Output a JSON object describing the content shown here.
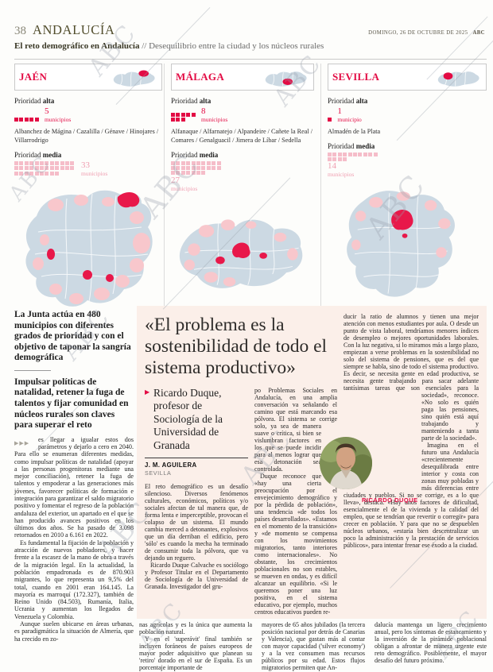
{
  "colors": {
    "accent_red": "#e30b44",
    "pink": "#f5bdc9",
    "map_base": "#ccd9e3",
    "map_pink": "#f8c7cc",
    "map_red": "#e8184a",
    "box_bg": "#fbefe9"
  },
  "watermark": "ABC",
  "header": {
    "page_number": "38",
    "section": "ANDALUCÍA",
    "date": "DOMINGO, 26 DE OCTUBRE DE 2025",
    "brand": "ABC",
    "kicker_bold": "El reto demográfico en Andalucía",
    "kicker_rest": "// Desequilibrio entre la ciudad y los núcleos rurales"
  },
  "panels": [
    {
      "title": "JAÉN",
      "alta": {
        "label": "Prioridad ",
        "level": "alta",
        "count": "5",
        "n": 5,
        "unit": "municipios"
      },
      "municipalities": "Albanchez de Mágina / Cazalilla / Génave / Hinojares / Villarrodrigo",
      "media": {
        "label": "Prioridad ",
        "level": "media",
        "count": "33",
        "n": 33,
        "unit": "municipios"
      }
    },
    {
      "title": "MÁLAGA",
      "alta": {
        "label": "Prioridad ",
        "level": "alta",
        "count": "8",
        "n": 8,
        "unit": "municipios"
      },
      "municipalities": "Alfanaque / Alfarnatejo / Alpandeire / Cañete la Real / Comares / Genalguacil / Jimera de Líbar / Sedella",
      "media": {
        "label": "Prioridad ",
        "level": "media",
        "count": "27",
        "n": 27,
        "unit": "municipios"
      }
    },
    {
      "title": "SEVILLA",
      "alta": {
        "label": "Prioridad ",
        "level": "alta",
        "count": "1",
        "n": 1,
        "unit": "municipio"
      },
      "municipalities": "Almadén de la Plata",
      "media": {
        "label": "Prioridad ",
        "level": "media",
        "count": "14",
        "n": 14,
        "unit": "municipios"
      }
    }
  ],
  "left_article": {
    "lede1": "La Junta actúa en 480 municipios con diferentes grados de prioridad y con el objetivo de taponar la sangría demográfica",
    "lede2": "Impulsar políticas de natalidad, retener la fuga de talentos y fijar comunidad en núcleos rurales son claves para superar el reto",
    "cont_marker": "▶▶▶",
    "p1": "es llegar a igualar estos dos parámetros y dejarlo a cero en 2040. Para ello se enumeran diferentes medidas, como impulsar políticas de natalidad (apoyar a las personas progenitoras mediante una mejor conciliación), retener la fuga de talentos y empoderar a las generaciones más jóvenes, favorecer políticas de formación e integración para garantizar el saldo migratorio positivo y fomentar el regreso de la población andaluza del exterior, un apartado en el que se han producido avances positivos en los últimos dos años. Se ha pasado de 3.098 retornados en 2010 a 6.161 en 2022.",
    "p2": "Es fundamental la fijación de la población y atracción de nuevos pobladores, y hacer frente a la escasez de la mano de obra a través de la migración legal. En la actualidad, la población empadronada es de 870.903 migrantes, lo que representa un 9,5% del total, cuando en 2001 eran 164.145. La mayoría es marroquí (172.327), también de Reino Unido (84.503), Rumanía, Italia, Ucrania y aumentan los llegados de Venezuela y Colombia.",
    "p3": "Aunque suelen ubicarse en áreas urbanas, es paradigmática la situación de Almería, que ha crecido en zo-"
  },
  "interview": {
    "headline": "«El problema es la sostenibilidad de todo el sistema productivo»",
    "deck_arrow": "▶",
    "deck": "Ricardo Duque, profesor de Sociología de la Universidad de Granada",
    "byline": "J. M. AGUILERA",
    "byline_place": "SEVILLA",
    "col1a": "El reto demográfico es un desafío silencioso. Diversos fenómenos culturales, económicos, políticos y/o sociales afectan de tal manera que, de forma lenta e imperceptible, provocan el colapso de un sistema. El mundo cambia merced a detonantes, explosivos que un día derriban el edificio, pero 'sólo' es cuando la mecha ha terminado de consumir toda la pólvora, que va dejando un reguero.",
    "col1b": "Ricardo Duque Calvache es sociólogo y Profesor Titular en el Departamento de Sociología de la Universidad de Granada. Investigador del gru-",
    "col2a": "po Problemas Sociales en Andalucía, en una amplia conversación va señalando el camino que está marcando esa pólvora. El sistema se corrige solo,",
    "col2b": "ya sea de manera suave o crítica, si bien se vislumbran factores en los que se puede incidir para al menos lograr que esa detonación sea controlada.",
    "col2c": "Duque reconoce que «hay una cierta preocupación por el envejecimiento demográfico y por la pérdida de población», una tendencia «de todos los países desarrollados». «Estamos en el momento de la transición» y «de momento se compensa con los movimientos migratorios, tanto interiores como internacionales». No obstante, los crecimientos poblacionales no son estables, se mueven en ondas, y es difícil alcanzar un equilibrio. «Si le queremos poner una luz positiva, en el sistema educativo, por ejemplo, muchos centros educativos pueden re-",
    "col3a": "ducir la ratio de alumnos y tienen una mejor atención con menos estudiantes por aula. O desde un punto de vista laboral, tendríamos menores índices de desempleo o mejores oportunidades laborales. Con la luz negativa, si lo miramos más a largo plazo, empiezan a verse problemas en la sostenibilidad no solo del sistema de pensiones, que es del que siempre se habla, sino de todo el sistema productivo. Es decir, se necesita gente en edad productiva, se necesita gente trabajando para sacar adelante tantísimas tareas que son esenciales para la sociedad», reconoce.",
    "col3b": "«No solo es quién paga las pensiones, sino quién está aquí trabajando y manteniendo a tanta parte de la sociedad».",
    "col3c": "Imagina en el futuro una Andalucía «crecientemente desequilibrada entre interior y costa con zonas muy pobladas y más diferencias entre ciudades y pueblos. Si no se corrige, es a lo que lleva», destaca. «Hay unos factores de dificultad, esencialmente el de la vivienda y la calidad del empleo, que se tendrían que revertir o corregir» para crecer en población. Y para que no se despueblen núcleos urbanos, «estaría bien descentralizar un poco la administración y la prestación de servicios públicos», para intentar frenar ese éxodo a la ciudad.",
    "photo_caption": "RICARDO DUQUE"
  },
  "bottom": {
    "col1a": "nas agrícolas y es la única que aumenta la población natural.",
    "col1b": "Y en el 'superávit' final también se incluyen foráneos de países europeos de mayor poder adquisitivo que planean su 'retiro' dorado en el sur de España. Es un porcentaje importante de",
    "col2": "mayores de 65 años jubilados (la tercera posición nacional por detrás de Canarias y Valencia), que gastan más al contar con mayor capacidad ('silver economy') y a la vez consumen mas recursos públicos por su edad. Estos flujos migratorios permiten que An-",
    "col3": "dalucía mantenga un ligero crecimiento anual, pero los síntomas de estancamiento y la inversión de la pirámide poblacional obligan a afrontar de manera urgente este reto demográfico. Posiblemente, el mayor desafío del futuro próximo."
  }
}
